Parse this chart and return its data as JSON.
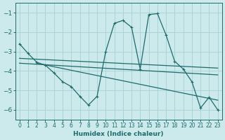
{
  "background_color": "#cce9ec",
  "grid_color": "#aad4d8",
  "line_color": "#1e6b6b",
  "xlabel": "Humidex (Indice chaleur)",
  "xlim": [
    -0.5,
    23.5
  ],
  "ylim": [
    -6.5,
    -0.5
  ],
  "yticks": [
    -6,
    -5,
    -4,
    -3,
    -2,
    -1
  ],
  "xticks": [
    0,
    1,
    2,
    3,
    4,
    5,
    6,
    7,
    8,
    9,
    10,
    11,
    12,
    13,
    14,
    15,
    16,
    17,
    18,
    19,
    20,
    21,
    22,
    23
  ],
  "series_main": {
    "x": [
      0,
      1,
      2,
      3,
      4,
      5,
      6,
      7,
      8,
      9,
      10,
      11,
      12,
      13,
      14,
      15,
      16,
      17,
      18,
      19,
      20,
      21,
      22,
      23
    ],
    "y": [
      -2.6,
      -3.1,
      -3.55,
      -3.7,
      -4.1,
      -4.55,
      -4.8,
      -5.3,
      -5.75,
      -5.3,
      -3.0,
      -1.55,
      -1.4,
      -1.75,
      -3.9,
      -1.1,
      -1.05,
      -2.15,
      -3.5,
      -3.9,
      -4.55,
      -5.9,
      -5.35,
      -6.0
    ]
  },
  "trend_lines": [
    {
      "x": [
        0,
        23
      ],
      "y": [
        -3.35,
        -3.85
      ]
    },
    {
      "x": [
        0,
        23
      ],
      "y": [
        -3.6,
        -4.2
      ]
    },
    {
      "x": [
        2,
        23
      ],
      "y": [
        -3.6,
        -5.5
      ]
    }
  ]
}
